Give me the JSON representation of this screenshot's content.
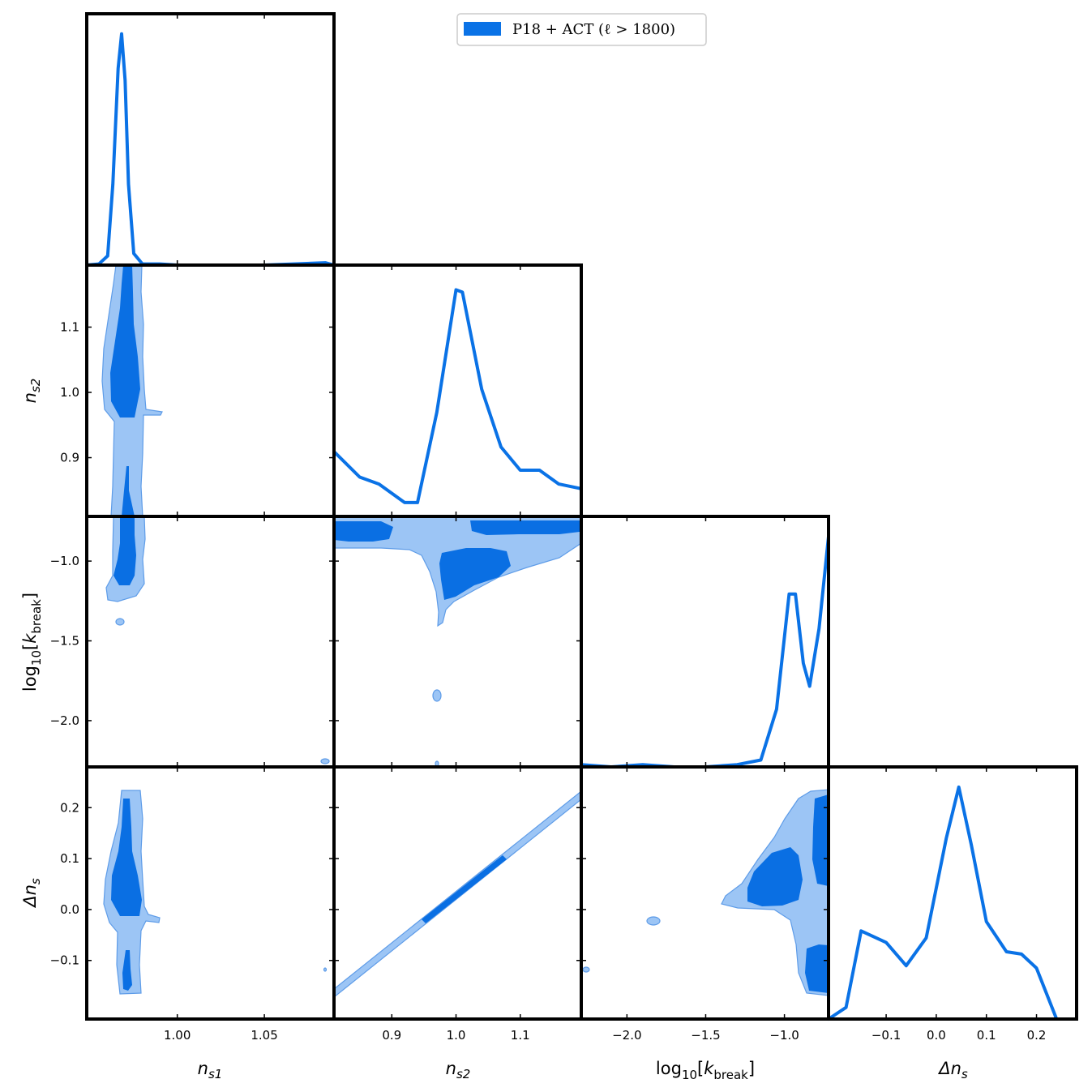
{
  "colors": {
    "accent": "#0a72e6",
    "contour_outer": "#9cc5f5",
    "contour_inner": "#0a6fe3"
  },
  "legend": {
    "label": "P18 + ACT (ℓ > 1800)",
    "placement": "top-center"
  },
  "axes": {
    "ns1": {
      "label_main": "n",
      "label_sub": "s1",
      "ticks": [
        "1.00",
        "1.05"
      ],
      "tick_values": [
        1.0,
        1.05
      ],
      "range": [
        0.948,
        1.09
      ]
    },
    "ns2": {
      "label_main": "n",
      "label_sub": "s2",
      "ticks": [
        "0.9",
        "1.0",
        "1.1"
      ],
      "tick_values": [
        0.9,
        1.0,
        1.1
      ],
      "range": [
        0.81,
        1.195
      ]
    },
    "logk": {
      "label_main": "log",
      "label_sub1": "10",
      "label_bracket_open": "[",
      "label_var": "k",
      "label_sub2": "break",
      "label_bracket_close": "]",
      "ticks": [
        "−2.0",
        "−1.5",
        "−1.0"
      ],
      "tick_values": [
        -2.0,
        -1.5,
        -1.0
      ],
      "range": [
        -2.29,
        -0.72
      ]
    },
    "dns": {
      "label_main": "Δn",
      "label_sub": "s",
      "ticks": [
        "−0.1",
        "0.0",
        "0.1",
        "0.2"
      ],
      "tick_values": [
        -0.1,
        0.0,
        0.1,
        0.2
      ],
      "range": [
        -0.215,
        0.28
      ]
    }
  },
  "chart_data": {
    "type": "triangle-plot",
    "grid": false,
    "parameters": [
      "n_s1",
      "n_s2",
      "log10[k_break]",
      "Δn_s"
    ],
    "marginals": [
      {
        "parameter": "n_s1",
        "x": [
          0.948,
          0.955,
          0.96,
          0.963,
          0.966,
          0.968,
          0.97,
          0.972,
          0.975,
          0.98,
          0.99,
          1.0,
          1.05,
          1.085,
          1.09
        ],
        "y": [
          0,
          0.005,
          0.04,
          0.35,
          0.85,
          1.0,
          0.8,
          0.35,
          0.05,
          0.005,
          0.005,
          0.0,
          0.0,
          0.01,
          0.0
        ]
      },
      {
        "parameter": "n_s2",
        "x": [
          0.81,
          0.85,
          0.88,
          0.92,
          0.94,
          0.97,
          1.0,
          1.01,
          1.04,
          1.07,
          1.1,
          1.13,
          1.16,
          1.195
        ],
        "y": [
          0.28,
          0.17,
          0.14,
          0.06,
          0.06,
          0.45,
          0.98,
          0.97,
          0.55,
          0.3,
          0.2,
          0.2,
          0.14,
          0.12
        ]
      },
      {
        "parameter": "log10[k_break]",
        "x": [
          -2.29,
          -2.1,
          -1.9,
          -1.7,
          -1.5,
          -1.3,
          -1.15,
          -1.05,
          -0.97,
          -0.93,
          -0.88,
          -0.84,
          -0.78,
          -0.72
        ],
        "y": [
          0.01,
          0.0,
          0.01,
          0.0,
          0.0,
          0.01,
          0.03,
          0.25,
          0.75,
          0.75,
          0.45,
          0.35,
          0.6,
          1.0
        ]
      },
      {
        "parameter": "Δn_s",
        "x": [
          -0.215,
          -0.18,
          -0.15,
          -0.1,
          -0.06,
          -0.02,
          0.02,
          0.045,
          0.07,
          0.1,
          0.14,
          0.17,
          0.2,
          0.24,
          0.25
        ],
        "y": [
          0.0,
          0.05,
          0.38,
          0.33,
          0.23,
          0.35,
          0.78,
          1.0,
          0.75,
          0.42,
          0.29,
          0.28,
          0.22,
          0.0,
          0.0
        ]
      }
    ],
    "contour_levels": [
      "68%",
      "95%"
    ]
  }
}
